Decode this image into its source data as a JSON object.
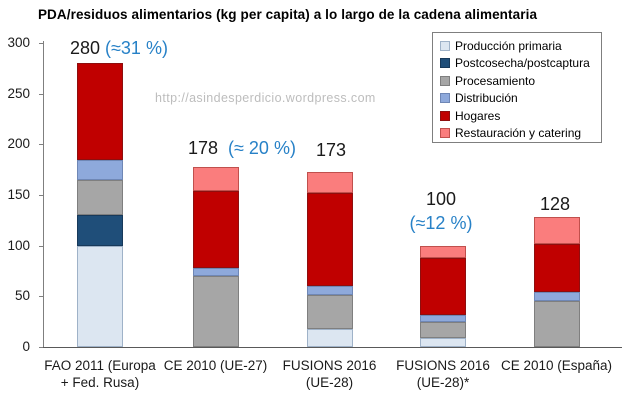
{
  "watermark": "http://asindesperdicio.wordpress.com",
  "colors": {
    "annotation_blue": "#2781c7",
    "axis_line": "#7f7f7f",
    "x_axis_line": "#595959",
    "watermark_gray": "#bdbdbd"
  },
  "chart_data": {
    "type": "bar",
    "stacked": true,
    "title": "PDA/residuos alimentarios (kg per capita) a lo largo de la cadena alimentaria",
    "xlabel": "",
    "ylabel": "",
    "ylim": [
      0,
      300
    ],
    "y_ticks": [
      300,
      250,
      200,
      150,
      100,
      50,
      0
    ],
    "grid": false,
    "legend_position": "top-right",
    "categories": [
      "FAO 2011 (Europa + Fed. Rusa)",
      "CE 2010 (UE-27)",
      "FUSIONS 2016 (UE-28)",
      "FUSIONS 2016 (UE-28)*",
      "CE 2010 (España)"
    ],
    "category_label_lines": [
      [
        "FAO 2011 (Europa",
        "+ Fed. Rusa)"
      ],
      [
        "CE 2010 (UE-27)"
      ],
      [
        "FUSIONS 2016",
        "(UE-28)"
      ],
      [
        "FUSIONS 2016",
        "(UE-28)*"
      ],
      [
        "CE 2010 (España)"
      ]
    ],
    "series": [
      {
        "name": "Producción primaria",
        "color": "#dce6f1",
        "border": "#9fb2c8",
        "values": [
          100,
          0,
          18,
          9,
          0
        ]
      },
      {
        "name": "Postcosecha/postcaptura",
        "color": "#1f4e79",
        "border": "#17395a",
        "values": [
          30,
          0,
          0,
          0,
          0
        ]
      },
      {
        "name": "Procesamiento",
        "color": "#a6a6a6",
        "border": "#7f7f7f",
        "values": [
          35,
          70,
          33,
          16,
          45
        ]
      },
      {
        "name": "Distribución",
        "color": "#8ea9db",
        "border": "#6f87b5",
        "values": [
          20,
          8,
          9,
          7,
          9
        ]
      },
      {
        "name": "Hogares",
        "color": "#c00000",
        "border": "#8e0e0e",
        "values": [
          95,
          76,
          92,
          56,
          48
        ]
      },
      {
        "name": "Restauración y catering",
        "color": "#fa7d7d",
        "border": "#c0504d",
        "values": [
          0,
          24,
          21,
          12,
          26
        ]
      }
    ],
    "totals": [
      280,
      178,
      173,
      100,
      128
    ],
    "total_labels": [
      "280",
      "178",
      "173",
      "100",
      "128"
    ],
    "pct_labels": [
      "(≈31 %)",
      "(≈ 20 %)",
      "",
      "(≈12 %)",
      ""
    ]
  }
}
